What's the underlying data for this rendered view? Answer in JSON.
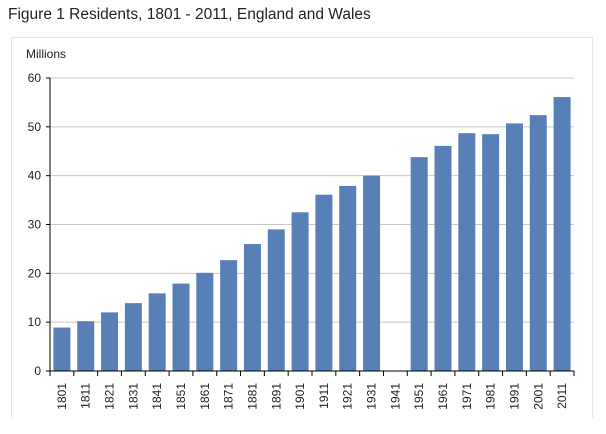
{
  "chart_data": {
    "type": "bar",
    "title": "Figure 1 Residents, 1801 - 2011, England and Wales",
    "ylabel": "Millions",
    "xlabel": "",
    "ylim": [
      0,
      60
    ],
    "yticks": [
      0,
      10,
      20,
      30,
      40,
      50,
      60
    ],
    "grid": true,
    "bar_color": "#5880b6",
    "categories": [
      "1801",
      "1811",
      "1821",
      "1831",
      "1841",
      "1851",
      "1861",
      "1871",
      "1881",
      "1891",
      "1901",
      "1911",
      "1921",
      "1931",
      "1941",
      "1951",
      "1961",
      "1971",
      "1981",
      "1991",
      "2001",
      "2011"
    ],
    "values": [
      8.9,
      10.2,
      12.0,
      13.9,
      15.9,
      17.9,
      20.1,
      22.7,
      26.0,
      29.0,
      32.5,
      36.1,
      37.9,
      40.0,
      null,
      43.8,
      46.1,
      48.7,
      48.5,
      50.7,
      52.4,
      56.1
    ]
  }
}
